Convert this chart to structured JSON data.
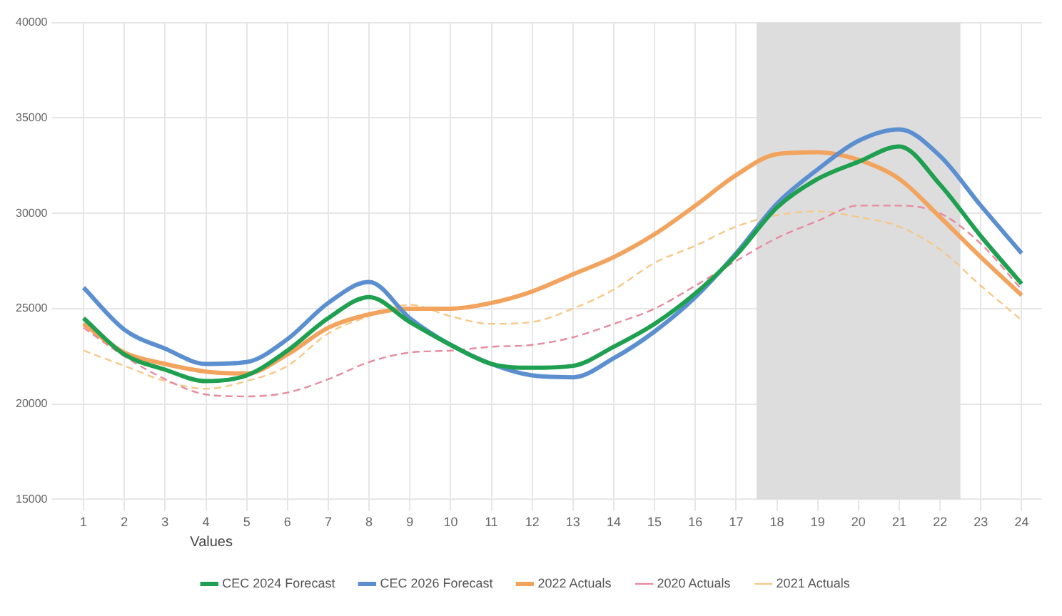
{
  "chart_data": {
    "type": "line",
    "x": [
      1,
      2,
      3,
      4,
      5,
      6,
      7,
      8,
      9,
      10,
      11,
      12,
      13,
      14,
      15,
      16,
      17,
      18,
      19,
      20,
      21,
      22,
      23,
      24
    ],
    "xlim": [
      0.5,
      24.5
    ],
    "xticks": [
      1,
      2,
      3,
      4,
      5,
      6,
      7,
      8,
      9,
      10,
      11,
      12,
      13,
      14,
      15,
      16,
      17,
      18,
      19,
      20,
      21,
      22,
      23,
      24
    ],
    "ylim": [
      15000,
      40000
    ],
    "yticks": [
      15000,
      20000,
      25000,
      30000,
      35000,
      40000
    ],
    "grid": true,
    "legend": "bottom",
    "legend_title": "Values",
    "marker": "none",
    "bands": [
      {
        "axis": "x",
        "from": 17.5,
        "to": 22.5,
        "color": "#dddddd"
      }
    ],
    "series": [
      {
        "name": "CEC 2024 Forecast",
        "color": "#1fa050",
        "line_style": "solid",
        "values": [
          24500,
          22600,
          21800,
          21200,
          21500,
          22800,
          24500,
          25600,
          24300,
          23100,
          22100,
          21900,
          22000,
          23000,
          24200,
          25800,
          27800,
          30300,
          31800,
          32700,
          33500,
          31500,
          28800,
          26300
        ]
      },
      {
        "name": "CEC 2026 Forecast",
        "color": "#5b8fd0",
        "line_style": "solid",
        "values": [
          26100,
          23900,
          22900,
          22100,
          22200,
          23400,
          25300,
          26400,
          24500,
          23100,
          22100,
          21500,
          21400,
          22400,
          23800,
          25600,
          27900,
          30500,
          32300,
          33800,
          34400,
          33000,
          30400,
          27900
        ]
      },
      {
        "name": "2022 Actuals",
        "color": "#f2a35e",
        "line_style": "solid",
        "values": [
          24200,
          22700,
          22100,
          21700,
          21600,
          22600,
          24000,
          24700,
          25000,
          25000,
          25300,
          25900,
          26800,
          27700,
          28900,
          30400,
          32000,
          33100,
          33200,
          32800,
          31800,
          29800,
          27700,
          25700
        ]
      },
      {
        "name": "2020 Actuals",
        "color": "#e88aa0",
        "line_style": "dashed",
        "values": [
          24000,
          22500,
          21300,
          20500,
          20400,
          20600,
          21300,
          22200,
          22700,
          22800,
          23000,
          23100,
          23500,
          24200,
          25000,
          26200,
          27500,
          28700,
          29600,
          30400,
          30400,
          30000,
          28400,
          26000
        ]
      },
      {
        "name": "2021 Actuals",
        "color": "#f5c98a",
        "line_style": "dashed",
        "values": [
          22800,
          22000,
          21200,
          20800,
          21200,
          22000,
          23700,
          24600,
          25200,
          24600,
          24200,
          24300,
          25000,
          26000,
          27400,
          28300,
          29300,
          29900,
          30100,
          29800,
          29300,
          28100,
          26200,
          24400
        ]
      }
    ]
  }
}
